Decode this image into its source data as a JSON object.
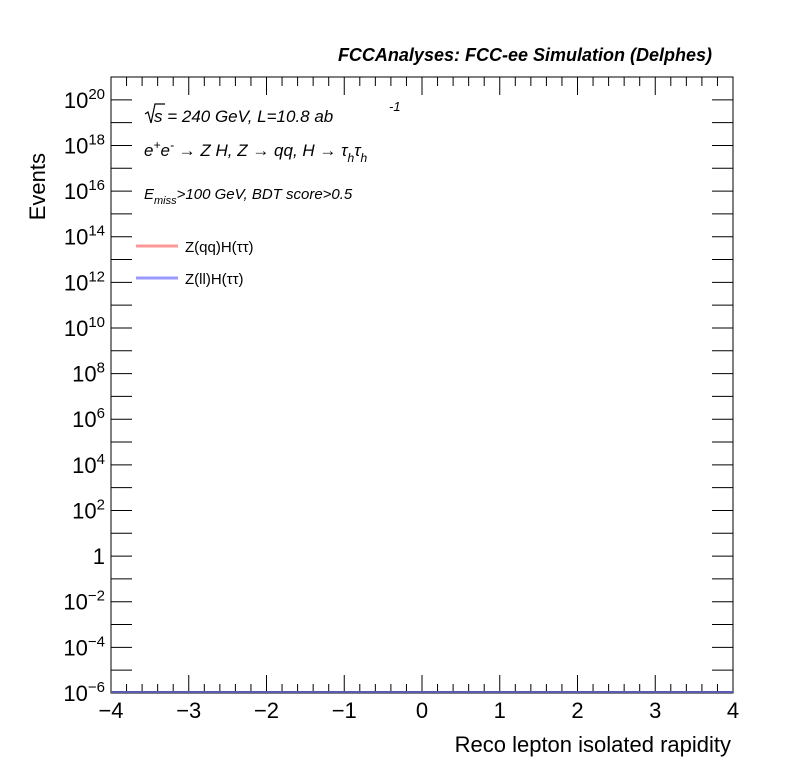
{
  "chart_data": {
    "type": "line",
    "title": "FCCAnalyses: FCC-ee Simulation (Delphes)",
    "xlabel": "Reco lepton isolated rapidity",
    "ylabel": "Events",
    "xlim": [
      -4,
      4
    ],
    "ylim_exponent": [
      -6,
      21
    ],
    "yscale": "log",
    "x_ticks": [
      -4,
      -3,
      -2,
      -1,
      0,
      1,
      2,
      3,
      4
    ],
    "x_tick_labels": [
      "−4",
      "−3",
      "−2",
      "−1",
      "0",
      "1",
      "2",
      "3",
      "4"
    ],
    "y_major_ticks": [
      {
        "value_exp": -6,
        "base": "10",
        "exp": "−6"
      },
      {
        "value_exp": -4,
        "base": "10",
        "exp": "−4"
      },
      {
        "value_exp": -2,
        "base": "10",
        "exp": "−2"
      },
      {
        "value_exp": 0,
        "base": "1",
        "exp": ""
      },
      {
        "value_exp": 2,
        "base": "10",
        "exp": "2"
      },
      {
        "value_exp": 4,
        "base": "10",
        "exp": "4"
      },
      {
        "value_exp": 6,
        "base": "10",
        "exp": "6"
      },
      {
        "value_exp": 8,
        "base": "10",
        "exp": "8"
      },
      {
        "value_exp": 10,
        "base": "10",
        "exp": "10"
      },
      {
        "value_exp": 12,
        "base": "10",
        "exp": "12"
      },
      {
        "value_exp": 14,
        "base": "10",
        "exp": "14"
      },
      {
        "value_exp": 16,
        "base": "10",
        "exp": "16"
      },
      {
        "value_exp": 18,
        "base": "10",
        "exp": "18"
      },
      {
        "value_exp": 20,
        "base": "10",
        "exp": "20"
      }
    ],
    "annotations": {
      "line1": {
        "sqrt": "√",
        "s": "s",
        "rest": " = 240 GeV, L=10.8 ab",
        "sup": "-1"
      },
      "line2": {
        "e": "e",
        "plus": "+",
        "e2": "e",
        "minus": "-",
        "process": " → Z H, Z  → qq, H  → ",
        "tau1": "τ",
        "h1": "h",
        "tau2": "τ",
        "h2": "h"
      },
      "line3": {
        "E": "E",
        "sub": "miss",
        "rest": ">100 GeV, BDT score>0.5"
      }
    },
    "legend_position": "top-left",
    "series": [
      {
        "name": "Z(qq)H(ττ)",
        "color": "#ff9999",
        "x": [
          -4,
          4
        ],
        "y": [
          0,
          0
        ]
      },
      {
        "name": "Z(ll)H(ττ)",
        "color": "#9999ff",
        "x": [
          -4,
          4
        ],
        "y": [
          0,
          0
        ]
      }
    ],
    "grid": false
  }
}
